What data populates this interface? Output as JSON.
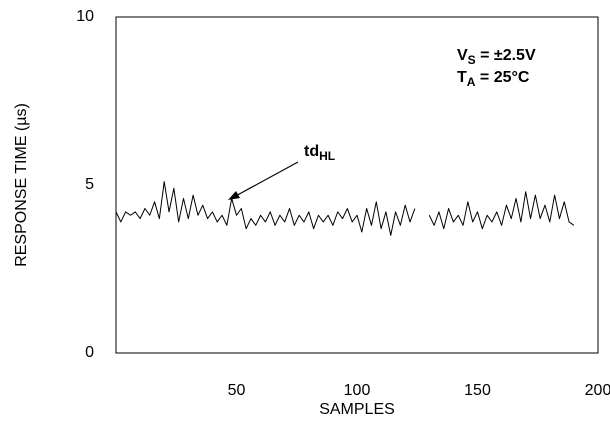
{
  "chart_data": {
    "type": "line",
    "xlabel": "SAMPLES",
    "ylabel": "RESPONSE TIME (µs)",
    "xlim": [
      0,
      200
    ],
    "xticks": [
      50,
      100,
      150,
      200
    ],
    "ylim": [
      0,
      10
    ],
    "yticks": [
      0,
      5,
      10
    ],
    "annotations": [
      {
        "parts": [
          "V",
          "S",
          " = ±2.5V"
        ]
      },
      {
        "parts": [
          "T",
          "A",
          " = 25°C"
        ]
      },
      {
        "parts": [
          "td",
          "HL"
        ]
      }
    ],
    "x": [
      0,
      2,
      4,
      6,
      8,
      10,
      12,
      14,
      16,
      18,
      20,
      22,
      24,
      26,
      28,
      30,
      32,
      34,
      36,
      38,
      40,
      42,
      44,
      46,
      48,
      50,
      52,
      54,
      56,
      58,
      60,
      62,
      64,
      66,
      68,
      70,
      72,
      74,
      76,
      78,
      80,
      82,
      84,
      86,
      88,
      90,
      92,
      94,
      96,
      98,
      100,
      102,
      104,
      106,
      108,
      110,
      112,
      114,
      116,
      118,
      120,
      122,
      124,
      126,
      128,
      130,
      132,
      134,
      136,
      138,
      140,
      142,
      144,
      146,
      148,
      150,
      152,
      154,
      156,
      158,
      160,
      162,
      164,
      166,
      168,
      170,
      172,
      174,
      176,
      178,
      180,
      182,
      184,
      186,
      188,
      190
    ],
    "series": [
      {
        "color": "#000000",
        "values": [
          4.2,
          3.9,
          4.2,
          4.1,
          4.2,
          4.0,
          4.3,
          4.1,
          4.5,
          4.0,
          5.1,
          4.2,
          4.9,
          3.9,
          4.6,
          4.0,
          4.7,
          4.1,
          4.4,
          4.0,
          4.2,
          3.9,
          4.1,
          3.8,
          4.6,
          4.1,
          4.3,
          3.7,
          4.0,
          3.8,
          4.1,
          3.9,
          4.2,
          3.8,
          4.1,
          3.9,
          4.3,
          3.8,
          4.1,
          3.9,
          4.2,
          3.7,
          4.1,
          3.9,
          4.1,
          3.8,
          4.2,
          4.0,
          4.3,
          3.9,
          4.1,
          3.6,
          4.3,
          3.8,
          4.5,
          3.7,
          4.2,
          3.5,
          4.2,
          3.8,
          4.4,
          3.9,
          4.3,
          null,
          null,
          4.1,
          3.8,
          4.2,
          3.7,
          4.3,
          3.9,
          4.1,
          3.8,
          4.5,
          3.9,
          4.2,
          3.7,
          4.1,
          3.9,
          4.2,
          3.8,
          4.4,
          4.0,
          4.6,
          3.9,
          4.8,
          4.0,
          4.7,
          4.0,
          4.4,
          3.9,
          4.7,
          4.0,
          4.5,
          3.9,
          3.8
        ]
      }
    ]
  }
}
